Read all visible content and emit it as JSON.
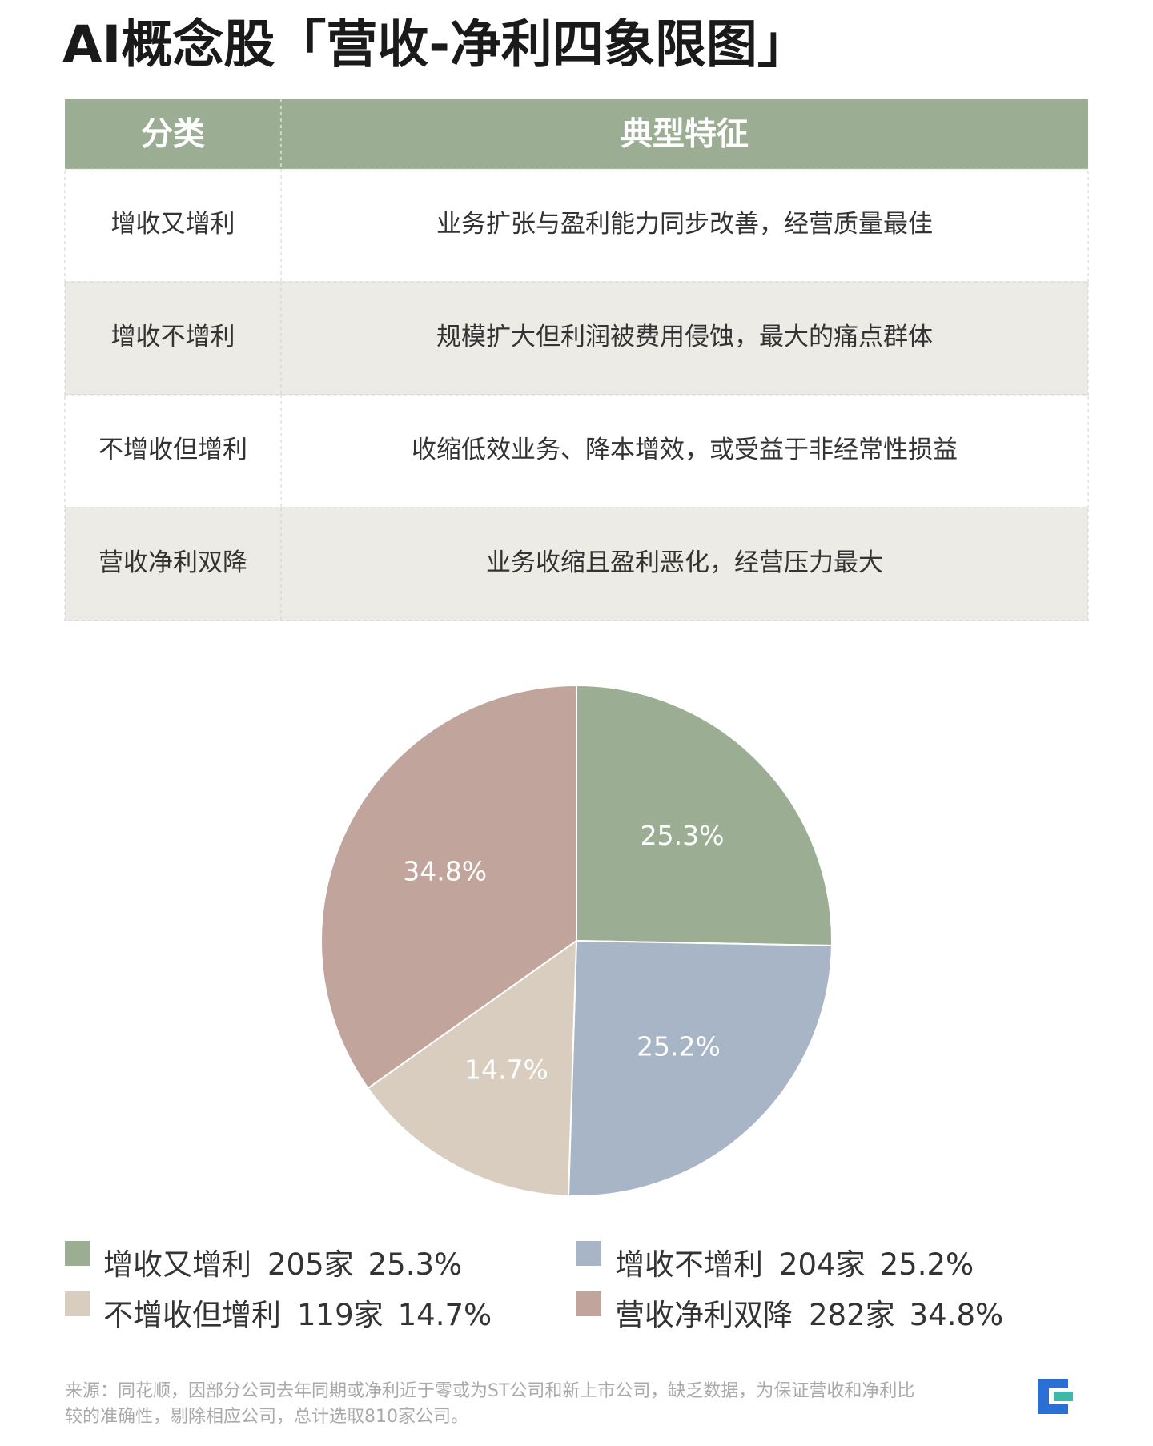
{
  "title": "AI概念股「营收-净利四象限图」",
  "table": {
    "header": [
      "分类",
      "典型特征"
    ],
    "rows": [
      [
        "增收又增利",
        "业务扩张与盈利能力同步改善，经营质量最佳"
      ],
      [
        "增收不增利",
        "规模扩大但利润被费用侵蚀，最大的痛点群体"
      ],
      [
        "不增收但增利",
        "收缩低效业务、降本增效，或受益于非经常性损益"
      ],
      [
        "营收净利双降",
        "业务收缩且盈利恶化，经营压力最大"
      ]
    ]
  },
  "chart_data": {
    "type": "pie",
    "categories": [
      "增收又增利",
      "增收不增利",
      "不增收但增利",
      "营收净利双降"
    ],
    "values": [
      25.3,
      25.2,
      14.7,
      34.8
    ],
    "value_labels": [
      "25.3%",
      "25.2%",
      "14.7%",
      "34.8%"
    ],
    "counts": [
      205,
      204,
      119,
      282
    ],
    "count_labels": [
      "205家",
      "204家",
      "119家",
      "282家"
    ],
    "colors": [
      "#9bae93",
      "#a7b5c6",
      "#d9cdbf",
      "#c1a59c"
    ]
  },
  "source": [
    "来源：同花顺，因部分公司去年同期或净利近于零或为ST公司和新上市公司，缺乏数据，为保证营收和净利比",
    "较的准确性，剔除相应公司，总计选取810家公司。"
  ]
}
